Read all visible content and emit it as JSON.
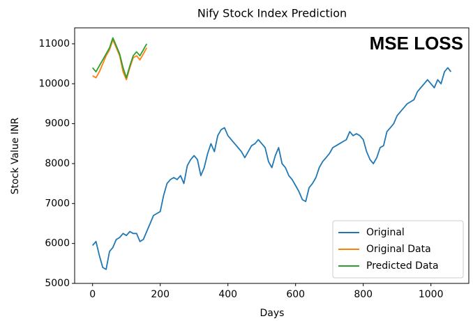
{
  "chart_data": {
    "type": "line",
    "title": "Nify Stock Index Prediction",
    "xlabel": "Days",
    "ylabel": "Stock Value INR",
    "annotation": "MSE LOSS",
    "xlim": [
      -53,
      1112
    ],
    "ylim": [
      5000,
      11400
    ],
    "xticks": [
      0,
      200,
      400,
      600,
      800,
      1000
    ],
    "yticks": [
      5000,
      6000,
      7000,
      8000,
      9000,
      10000,
      11000
    ],
    "grid": false,
    "legend": "lower right",
    "series": [
      {
        "name": "Original",
        "color": "#1f77b4",
        "x": [
          0,
          10,
          20,
          30,
          40,
          50,
          60,
          70,
          80,
          90,
          100,
          110,
          120,
          130,
          140,
          150,
          160,
          170,
          180,
          190,
          200,
          210,
          220,
          230,
          240,
          250,
          260,
          270,
          280,
          290,
          300,
          310,
          320,
          330,
          340,
          350,
          360,
          370,
          380,
          390,
          400,
          410,
          420,
          430,
          440,
          450,
          460,
          470,
          480,
          490,
          500,
          510,
          520,
          530,
          540,
          550,
          560,
          570,
          580,
          590,
          600,
          610,
          620,
          630,
          640,
          650,
          660,
          670,
          680,
          690,
          700,
          710,
          720,
          730,
          740,
          750,
          760,
          770,
          780,
          790,
          800,
          810,
          820,
          830,
          840,
          850,
          860,
          870,
          880,
          890,
          900,
          910,
          920,
          930,
          940,
          950,
          960,
          970,
          980,
          990,
          1000,
          1010,
          1020,
          1030,
          1040,
          1050,
          1059
        ],
        "values": [
          5950,
          6050,
          5700,
          5400,
          5350,
          5800,
          5900,
          6100,
          6150,
          6250,
          6200,
          6300,
          6250,
          6250,
          6050,
          6100,
          6300,
          6500,
          6700,
          6750,
          6800,
          7200,
          7500,
          7600,
          7650,
          7600,
          7700,
          7500,
          7950,
          8100,
          8200,
          8100,
          7700,
          7900,
          8250,
          8500,
          8300,
          8700,
          8850,
          8900,
          8700,
          8600,
          8500,
          8400,
          8300,
          8150,
          8300,
          8450,
          8500,
          8600,
          8500,
          8400,
          8050,
          7900,
          8200,
          8400,
          8000,
          7900,
          7700,
          7600,
          7450,
          7300,
          7100,
          7050,
          7400,
          7500,
          7650,
          7900,
          8050,
          8150,
          8250,
          8400,
          8450,
          8500,
          8550,
          8600,
          8800,
          8700,
          8750,
          8700,
          8600,
          8300,
          8100,
          8000,
          8150,
          8400,
          8450,
          8800,
          8900,
          9000,
          9200,
          9300,
          9400,
          9500,
          9550,
          9600,
          9800,
          9900,
          10000,
          10100,
          10000,
          9900,
          10100,
          10000,
          10300,
          10400,
          10300
        ]
      },
      {
        "name": "Original Data",
        "color": "#ff7f0e",
        "x": [
          0,
          10,
          20,
          30,
          40,
          50,
          60,
          70,
          80,
          90,
          100,
          110,
          120,
          130,
          140,
          150,
          160
        ],
        "values": [
          10200,
          10150,
          10300,
          10500,
          10700,
          10850,
          11100,
          10900,
          10700,
          10300,
          10100,
          10400,
          10650,
          10700,
          10600,
          10750,
          10900
        ]
      },
      {
        "name": "Predicted Data",
        "color": "#2ca02c",
        "x": [
          0,
          10,
          20,
          30,
          40,
          50,
          60,
          70,
          80,
          90,
          100,
          110,
          120,
          130,
          140,
          150,
          160
        ],
        "values": [
          10400,
          10300,
          10450,
          10600,
          10750,
          10900,
          11150,
          10950,
          10750,
          10400,
          10150,
          10450,
          10700,
          10800,
          10700,
          10850,
          11000
        ]
      }
    ]
  }
}
